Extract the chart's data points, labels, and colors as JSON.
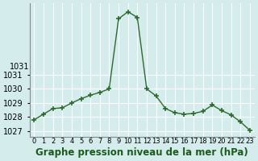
{
  "x": [
    0,
    1,
    2,
    3,
    4,
    5,
    6,
    7,
    8,
    9,
    10,
    11,
    12,
    13,
    14,
    15,
    16,
    17,
    18,
    19,
    20,
    21,
    22,
    23
  ],
  "y": [
    1027.8,
    1028.2,
    1028.6,
    1028.65,
    1029.0,
    1029.3,
    1029.55,
    1029.75,
    1030.0,
    1035.0,
    1035.5,
    1035.1,
    1030.0,
    1029.5,
    1028.6,
    1028.3,
    1028.2,
    1028.25,
    1028.4,
    1028.85,
    1028.45,
    1028.15,
    1027.65,
    1027.05
  ],
  "xlabel": "Graphe pression niveau de la mer (hPa)",
  "ylim": [
    1026.6,
    1036.1
  ],
  "yticks": [
    1027,
    1028,
    1029,
    1030,
    1031
  ],
  "ytick_labels": [
    "1027",
    "1028",
    "1029",
    "1030",
    "1031"
  ],
  "ytop_label": "1031",
  "xlim": [
    -0.5,
    23.5
  ],
  "line_color": "#2d6a2d",
  "marker_color": "#2d6a2d",
  "bg_color": "#d4ecec",
  "grid_color": "#ffffff",
  "title_color": "#1a5c1a",
  "title_fontsize": 8.5,
  "tick_fontsize": 7
}
